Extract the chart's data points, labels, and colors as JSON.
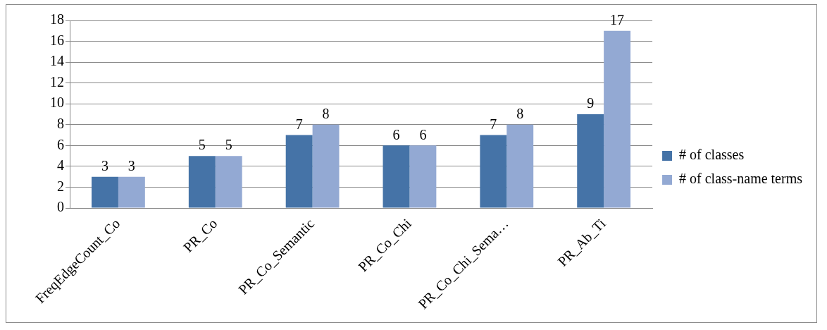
{
  "chart_data": {
    "type": "bar",
    "categories": [
      "FreqEdgeCount_Co",
      "PR_Co",
      "PR_Co_Semantic",
      "PR_Co_Chi",
      "PR_Co_Chi_Sema…",
      "PR_Ab_Ti"
    ],
    "series": [
      {
        "name": "# of classes",
        "color": "#4573a7",
        "values": [
          3,
          5,
          7,
          6,
          7,
          9
        ]
      },
      {
        "name": "# of class-name terms",
        "color": "#93a9d3",
        "values": [
          3,
          5,
          8,
          6,
          8,
          17
        ]
      }
    ],
    "ylim": [
      0,
      18
    ],
    "yticks": [
      0,
      2,
      4,
      6,
      8,
      10,
      12,
      14,
      16,
      18
    ],
    "grid": "y",
    "legend": "right",
    "data_labels": true
  }
}
